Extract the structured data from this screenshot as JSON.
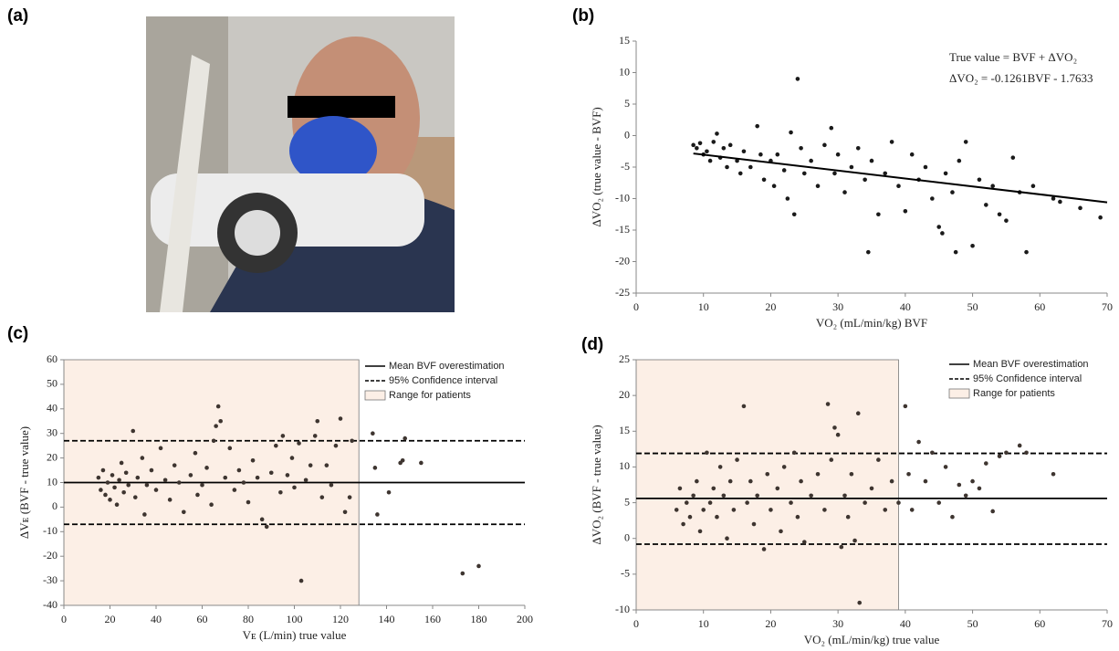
{
  "photo_label": "(a)",
  "chart_data": [
    {
      "type": "scatter",
      "label": "(b)",
      "xlabel": "VO₂ (mL/min/kg) BVF",
      "ylabel": "ΔVO₂ (true value - BVF)",
      "annotations": [
        "True value = BVF + ΔVO₂",
        "ΔVO₂ = -0.1261BVF - 1.7633"
      ],
      "color": "#1a1a1a",
      "xlim": [
        0,
        70
      ],
      "ylim": [
        -25,
        15
      ],
      "xticks": [
        0,
        10,
        20,
        30,
        40,
        50,
        60,
        70
      ],
      "yticks": [
        -25,
        -20,
        -15,
        -10,
        -5,
        0,
        5,
        10,
        15
      ],
      "x": [
        8.5,
        9,
        9.5,
        10,
        10.5,
        11,
        11.5,
        12,
        12.5,
        13,
        13.5,
        14,
        15,
        15.5,
        16,
        17,
        18,
        18.5,
        19,
        20,
        20.5,
        21,
        22,
        22.5,
        23,
        23.5,
        24,
        24.5,
        25,
        26,
        27,
        28,
        29,
        29.5,
        30,
        31,
        32,
        33,
        34,
        34.5,
        35,
        36,
        37,
        38,
        39,
        40,
        41,
        42,
        43,
        44,
        45,
        45.5,
        46,
        47,
        47.5,
        48,
        49,
        50,
        51,
        52,
        53,
        54,
        55,
        56,
        57,
        58,
        59,
        62,
        63,
        66,
        69
      ],
      "values": [
        -1.5,
        -2,
        -1.2,
        -3,
        -2.5,
        -4,
        -1,
        0.3,
        -3.5,
        -2,
        -5,
        -1.5,
        -4,
        -6,
        -2.5,
        -5,
        1.5,
        -3,
        -7,
        -4,
        -8,
        -3,
        -5.5,
        -10,
        0.5,
        -12.5,
        9,
        -2,
        -6,
        -4,
        -8,
        -1.5,
        1.2,
        -6,
        -3,
        -9,
        -5,
        -2,
        -7,
        -18.5,
        -4,
        -12.5,
        -6,
        -1,
        -8,
        -12,
        -3,
        -7,
        -5,
        -10,
        -14.5,
        -15.5,
        -6,
        -9,
        -18.5,
        -4,
        -1,
        -17.5,
        -7,
        -11,
        -8,
        -12.5,
        -13.5,
        -3.5,
        -9,
        -18.5,
        -8,
        -10,
        -10.5,
        -11.5,
        -13
      ],
      "trend": {
        "x": [
          8.5,
          70
        ],
        "values": [
          -2.84,
          -10.59
        ]
      }
    },
    {
      "type": "scatter",
      "label": "(c)",
      "xlabel": "Vᴇ (L/min) true value",
      "ylabel": "ΔVᴇ (BVF - true value)",
      "color": "#3e3530",
      "xlim": [
        0,
        200
      ],
      "ylim": [
        -40,
        60
      ],
      "xticks": [
        0,
        20,
        40,
        60,
        80,
        100,
        120,
        140,
        160,
        180,
        200
      ],
      "yticks": [
        -40,
        -30,
        -20,
        -10,
        0,
        10,
        20,
        30,
        40,
        50,
        60
      ],
      "x": [
        15,
        16,
        17,
        18,
        19,
        20,
        21,
        22,
        23,
        24,
        25,
        26,
        27,
        28,
        30,
        31,
        32,
        34,
        35,
        36,
        38,
        40,
        42,
        44,
        46,
        48,
        50,
        52,
        55,
        57,
        58,
        60,
        62,
        64,
        65,
        66,
        67,
        68,
        70,
        72,
        74,
        76,
        78,
        80,
        82,
        84,
        86,
        88,
        90,
        92,
        94,
        95,
        97,
        99,
        100,
        102,
        103,
        105,
        107,
        109,
        110,
        112,
        114,
        116,
        118,
        120,
        122,
        124,
        125,
        134,
        135,
        136,
        141,
        146,
        147,
        148,
        155,
        173,
        180
      ],
      "values": [
        12,
        7,
        15,
        5,
        10,
        3,
        13,
        8,
        1,
        11,
        18,
        6,
        14,
        9,
        31,
        4,
        12,
        20,
        -3,
        9,
        15,
        7,
        24,
        11,
        3,
        17,
        10,
        -2,
        13,
        22,
        5,
        9,
        16,
        1,
        27,
        33,
        41,
        35,
        12,
        24,
        7,
        15,
        10,
        2,
        19,
        12,
        -5,
        -8,
        14,
        25,
        6,
        29,
        13,
        20,
        8,
        26,
        -30,
        11,
        17,
        29,
        35,
        4,
        17,
        9,
        25,
        36,
        -2,
        4,
        27,
        30,
        16,
        -3,
        6,
        18,
        19,
        28,
        18,
        -27,
        -24
      ],
      "lines": [
        {
          "name": "Mean BVF overestimation",
          "values": [
            10
          ],
          "dash": false
        },
        {
          "name": "95% Confidence interval",
          "values": [
            27,
            -7
          ],
          "dash": true
        }
      ],
      "range": {
        "name": "Range for patients",
        "xlim": [
          0,
          128
        ],
        "color": "#fcefe6"
      }
    },
    {
      "type": "scatter",
      "label": "(d)",
      "xlabel": "VO₂ (mL/min/kg) true value",
      "ylabel": "ΔVO₂ (BVF - true value)",
      "color": "#3e3530",
      "xlim": [
        0,
        70
      ],
      "ylim": [
        -10,
        25
      ],
      "xticks": [
        0,
        10,
        20,
        30,
        40,
        50,
        60,
        70
      ],
      "yticks": [
        -10,
        -5,
        0,
        5,
        10,
        15,
        20,
        25
      ],
      "x": [
        6,
        6.5,
        7,
        7.5,
        8,
        8.5,
        9,
        9.5,
        10,
        10.5,
        11,
        11.5,
        12,
        12.5,
        13,
        13.5,
        14,
        14.5,
        15,
        16,
        16.5,
        17,
        17.5,
        18,
        19,
        19.5,
        20,
        21,
        21.5,
        22,
        23,
        23.5,
        24,
        24.5,
        25,
        26,
        27,
        28,
        28.5,
        29,
        29.5,
        30,
        30.5,
        31,
        31.5,
        32,
        32.5,
        33,
        33.2,
        34,
        35,
        36,
        37,
        38,
        39,
        40,
        40.5,
        41,
        42,
        43,
        44,
        45,
        46,
        47,
        48,
        49,
        50,
        51,
        52,
        53,
        54,
        55,
        57,
        58,
        62
      ],
      "values": [
        4,
        7,
        2,
        5,
        3,
        6,
        8,
        1,
        4,
        12,
        5,
        7,
        3,
        10,
        6,
        0,
        8,
        4,
        11,
        18.5,
        5,
        8,
        2,
        6,
        -1.5,
        9,
        4,
        7,
        1,
        10,
        5,
        12,
        3,
        8,
        -0.5,
        6,
        9,
        4,
        18.8,
        11,
        15.5,
        14.5,
        -1.2,
        6,
        3,
        9,
        -0.3,
        17.5,
        -9,
        5,
        7,
        11,
        4,
        8,
        5,
        18.5,
        9,
        4,
        13.5,
        8,
        12,
        5,
        10,
        3,
        7.5,
        6,
        8,
        7,
        10.5,
        3.8,
        11.5,
        12,
        13,
        12,
        9
      ],
      "lines": [
        {
          "name": "Mean BVF overestimation",
          "values": [
            5.6
          ],
          "dash": false
        },
        {
          "name": "95% Confidence interval",
          "values": [
            11.9,
            -0.8
          ],
          "dash": true
        }
      ],
      "range": {
        "name": "Range for patients",
        "xlim": [
          0,
          39
        ],
        "color": "#fcefe6"
      }
    }
  ]
}
